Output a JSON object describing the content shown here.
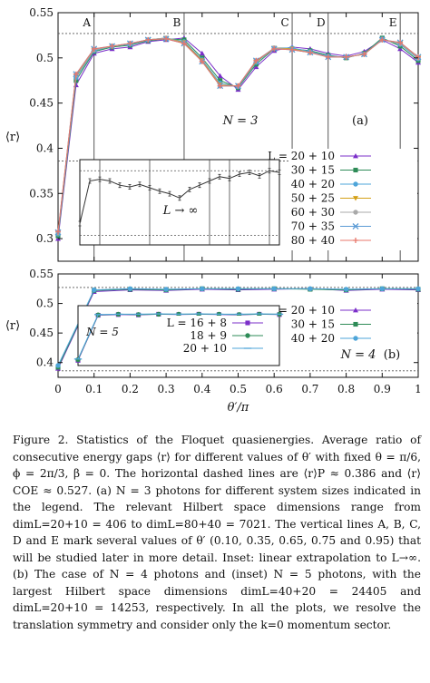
{
  "figure": {
    "caption": "Figure 2. Statistics of the Floquet quasienergies. Average ratio of consecutive energy gaps ⟨r⟩ for different values of θ′ with fixed θ = π/6, ϕ = 2π/3, β = 0. The horizontal dashed lines are ⟨r⟩P ≈ 0.386 and ⟨r⟩COE ≈ 0.527. (a) N = 3 photons for different system sizes indicated in the legend. The relevant Hilbert space dimensions range from dimL=20+10 = 406 to dimL=80+40 = 7021. The vertical lines A, B, C, D and E mark several values of θ′ (0.10, 0.35, 0.65, 0.75 and 0.95) that will be studied later in more detail. Inset: linear extrapolation to L→∞. (b) The case of N = 4 photons and (inset) N = 5 photons, with the largest Hilbert space dimensions dimL=40+20 = 24405 and dimL=20+10 = 14253, respectively. In all the plots, we resolve the translation symmetry and consider only the k=0 momentum sector."
  },
  "chart_data": [
    {
      "id": "panel-a",
      "type": "line",
      "panel_label": "(a)",
      "annotation": "N = 3",
      "xlabel": "",
      "ylabel": "⟨r⟩",
      "xlim": [
        0,
        1
      ],
      "ylim": [
        0.275,
        0.55
      ],
      "xticks": [],
      "xtick_labels": [],
      "yticks": [
        0.3,
        0.35,
        0.4,
        0.45,
        0.5,
        0.55
      ],
      "ytick_labels": [
        "0.3",
        "0.35",
        "0.4",
        "0.45",
        "0.5",
        "0.55"
      ],
      "hlines": [
        0.386,
        0.527
      ],
      "vlines": [
        {
          "x": 0.1,
          "label": "A"
        },
        {
          "x": 0.35,
          "label": "B"
        },
        {
          "x": 0.65,
          "label": "C"
        },
        {
          "x": 0.75,
          "label": "D"
        },
        {
          "x": 0.95,
          "label": "E"
        }
      ],
      "legend_position": "right",
      "series": [
        {
          "name": "L = 20 + 10",
          "color": "#7b2fc9",
          "marker": "triangle",
          "values": [
            0.3,
            0.47,
            0.505,
            0.51,
            0.512,
            0.518,
            0.52,
            0.522,
            0.505,
            0.48,
            0.465,
            0.49,
            0.508,
            0.512,
            0.51,
            0.505,
            0.502,
            0.507,
            0.52,
            0.51,
            0.495
          ]
        },
        {
          "name": "30 + 15",
          "color": "#2e8b57",
          "marker": "square",
          "values": [
            0.303,
            0.475,
            0.507,
            0.512,
            0.514,
            0.519,
            0.521,
            0.52,
            0.5,
            0.475,
            0.467,
            0.493,
            0.51,
            0.51,
            0.508,
            0.503,
            0.5,
            0.505,
            0.522,
            0.513,
            0.497
          ]
        },
        {
          "name": "40 + 20",
          "color": "#4ea5d9",
          "marker": "circle",
          "values": [
            0.305,
            0.478,
            0.508,
            0.513,
            0.515,
            0.52,
            0.522,
            0.518,
            0.498,
            0.472,
            0.468,
            0.495,
            0.511,
            0.511,
            0.507,
            0.502,
            0.501,
            0.504,
            0.521,
            0.515,
            0.499
          ]
        },
        {
          "name": "50 + 25",
          "color": "#d4a017",
          "marker": "triangle-down",
          "values": [
            0.306,
            0.48,
            0.509,
            0.513,
            0.516,
            0.52,
            0.522,
            0.517,
            0.497,
            0.47,
            0.469,
            0.496,
            0.511,
            0.51,
            0.506,
            0.501,
            0.501,
            0.504,
            0.52,
            0.516,
            0.5
          ]
        },
        {
          "name": "60 + 30",
          "color": "#a9a9a9",
          "marker": "circle",
          "values": [
            0.307,
            0.481,
            0.509,
            0.513,
            0.516,
            0.52,
            0.522,
            0.516,
            0.496,
            0.469,
            0.469,
            0.497,
            0.511,
            0.509,
            0.506,
            0.501,
            0.501,
            0.504,
            0.52,
            0.516,
            0.5
          ]
        },
        {
          "name": "70 + 35",
          "color": "#5b9bd5",
          "marker": "cross",
          "values": [
            0.307,
            0.482,
            0.51,
            0.513,
            0.516,
            0.52,
            0.521,
            0.516,
            0.496,
            0.469,
            0.469,
            0.497,
            0.51,
            0.509,
            0.506,
            0.501,
            0.501,
            0.504,
            0.52,
            0.517,
            0.501
          ]
        },
        {
          "name": "80 + 40",
          "color": "#e8776b",
          "marker": "plus",
          "values": [
            0.308,
            0.482,
            0.51,
            0.513,
            0.516,
            0.52,
            0.521,
            0.516,
            0.496,
            0.469,
            0.469,
            0.497,
            0.51,
            0.509,
            0.506,
            0.501,
            0.501,
            0.504,
            0.52,
            0.517,
            0.501
          ]
        }
      ],
      "x": [
        0.0,
        0.05,
        0.1,
        0.15,
        0.2,
        0.25,
        0.3,
        0.35,
        0.4,
        0.45,
        0.5,
        0.55,
        0.6,
        0.65,
        0.7,
        0.75,
        0.8,
        0.85,
        0.9,
        0.95,
        1.0
      ]
    },
    {
      "id": "panel-a-inset",
      "type": "line",
      "annotation": "L → ∞",
      "xlim": [
        0,
        1
      ],
      "ylim": [
        0.275,
        0.375
      ],
      "hlines": [
        0.286,
        0.362
      ],
      "vlines": [
        0.1,
        0.35,
        0.65,
        0.75,
        0.95
      ],
      "series": [
        {
          "name": "",
          "color": "#333333",
          "marker": "errorbar",
          "values": [
            0.3,
            0.35,
            0.352,
            0.35,
            0.345,
            0.343,
            0.346,
            0.342,
            0.338,
            0.335,
            0.33,
            0.34,
            0.345,
            0.35,
            0.355,
            0.353,
            0.358,
            0.36,
            0.356,
            0.362,
            0.36
          ]
        }
      ],
      "x": [
        0.0,
        0.05,
        0.1,
        0.15,
        0.2,
        0.25,
        0.3,
        0.35,
        0.4,
        0.45,
        0.5,
        0.55,
        0.6,
        0.65,
        0.7,
        0.75,
        0.8,
        0.85,
        0.9,
        0.95,
        1.0
      ]
    },
    {
      "id": "panel-b",
      "type": "line",
      "panel_label": "(b)",
      "annotation": "N = 4",
      "xlabel": "θ′/π",
      "ylabel": "⟨r⟩",
      "xlim": [
        0,
        1
      ],
      "ylim": [
        0.375,
        0.55
      ],
      "xticks": [
        0,
        0.1,
        0.2,
        0.3,
        0.4,
        0.5,
        0.6,
        0.7,
        0.8,
        0.9,
        1
      ],
      "xtick_labels": [
        "0",
        "0.1",
        "0.2",
        "0.3",
        "0.4",
        "0.5",
        "0.6",
        "0.7",
        "0.8",
        "0.9",
        "1"
      ],
      "yticks": [
        0.4,
        0.45,
        0.5,
        0.55
      ],
      "ytick_labels": [
        "0.4",
        "0.45",
        "0.5",
        "0.55"
      ],
      "hlines": [
        0.386,
        0.527
      ],
      "legend_position": "right",
      "series": [
        {
          "name": "L = 20 + 10",
          "color": "#7b2fc9",
          "marker": "triangle",
          "values": [
            0.39,
            0.52,
            0.523,
            0.522,
            0.524,
            0.523,
            0.524,
            0.525,
            0.522,
            0.524,
            0.523
          ]
        },
        {
          "name": "30 + 15",
          "color": "#2e8b57",
          "marker": "square",
          "values": [
            0.392,
            0.522,
            0.524,
            0.523,
            0.525,
            0.524,
            0.525,
            0.524,
            0.523,
            0.525,
            0.524
          ]
        },
        {
          "name": "40 + 20",
          "color": "#4ea5d9",
          "marker": "circle",
          "values": [
            0.395,
            0.523,
            0.525,
            0.524,
            0.525,
            0.525,
            0.525,
            0.525,
            0.524,
            0.525,
            0.525
          ]
        }
      ],
      "x": [
        0.0,
        0.1,
        0.2,
        0.3,
        0.4,
        0.5,
        0.6,
        0.7,
        0.8,
        0.9,
        1.0
      ]
    },
    {
      "id": "panel-b-inset",
      "type": "line",
      "annotation": "N = 5",
      "legend_position": "right",
      "xlim": [
        0,
        1
      ],
      "ylim": [
        0.375,
        0.55
      ],
      "series": [
        {
          "name": "L = 16 + 8",
          "color": "#7b2fc9",
          "marker": "square",
          "values": [
            0.39,
            0.522,
            0.524,
            0.523,
            0.525,
            0.524,
            0.525,
            0.524,
            0.523,
            0.525,
            0.524
          ]
        },
        {
          "name": "18 + 9",
          "color": "#2e8b57",
          "marker": "circle",
          "values": [
            0.392,
            0.523,
            0.525,
            0.524,
            0.525,
            0.525,
            0.525,
            0.525,
            0.524,
            0.525,
            0.525
          ]
        },
        {
          "name": "20 + 10",
          "color": "#4ea5d9",
          "marker": "line",
          "values": [
            0.394,
            0.524,
            0.525,
            0.525,
            0.526,
            0.525,
            0.526,
            0.525,
            0.525,
            0.526,
            0.525
          ]
        }
      ],
      "x": [
        0.0,
        0.1,
        0.2,
        0.3,
        0.4,
        0.5,
        0.6,
        0.7,
        0.8,
        0.9,
        1.0
      ]
    }
  ]
}
